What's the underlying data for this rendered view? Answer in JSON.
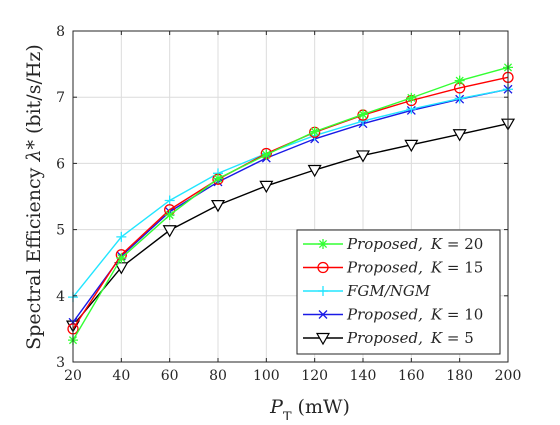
{
  "chart_data": {
    "type": "line",
    "xlabel": {
      "symbol": "P",
      "subscript": "T",
      "unit": "(mW)"
    },
    "ylabel": {
      "prefix": "Spectral Efficiency ",
      "symbol": "λ*",
      "unit": "(bit/s/Hz)"
    },
    "xlim": [
      20,
      200
    ],
    "ylim": [
      3,
      8
    ],
    "x_ticks": [
      20,
      40,
      60,
      80,
      100,
      120,
      140,
      160,
      180,
      200
    ],
    "y_ticks": [
      3,
      4,
      5,
      6,
      7,
      8
    ],
    "x": [
      20,
      40,
      60,
      80,
      100,
      120,
      140,
      160,
      180,
      200
    ],
    "grid": true,
    "legend_position": "bottom-right",
    "series": [
      {
        "name": "Proposed, K = 20",
        "label_main": "Proposed,",
        "label_param": "K = 20",
        "color": "#33ff33",
        "marker": "asterisk",
        "values": [
          3.33,
          4.57,
          5.22,
          5.77,
          6.13,
          6.48,
          6.74,
          6.99,
          7.25,
          7.45
        ]
      },
      {
        "name": "Proposed, K = 15",
        "label_main": "Proposed,",
        "label_param": "K = 15",
        "color": "#ff0000",
        "marker": "circle",
        "values": [
          3.5,
          4.62,
          5.3,
          5.76,
          6.15,
          6.47,
          6.73,
          6.95,
          7.14,
          7.3
        ]
      },
      {
        "name": "FGM/NGM",
        "label_main": "FGM/NGM",
        "label_param": "",
        "color": "#22e5ff",
        "marker": "plus",
        "values": [
          3.98,
          4.89,
          5.44,
          5.85,
          6.15,
          6.42,
          6.64,
          6.82,
          6.98,
          7.12
        ]
      },
      {
        "name": "Proposed, K = 10",
        "label_main": "Proposed,",
        "label_param": "K = 10",
        "color": "#1a1ae6",
        "marker": "cross",
        "values": [
          3.6,
          4.6,
          5.27,
          5.72,
          6.08,
          6.37,
          6.6,
          6.8,
          6.97,
          7.12
        ]
      },
      {
        "name": "Proposed, K = 5",
        "label_main": "Proposed,",
        "label_param": "K = 5",
        "color": "#000000",
        "marker": "triangle-down",
        "values": [
          3.55,
          4.43,
          4.99,
          5.37,
          5.66,
          5.9,
          6.12,
          6.28,
          6.44,
          6.6
        ]
      }
    ]
  }
}
